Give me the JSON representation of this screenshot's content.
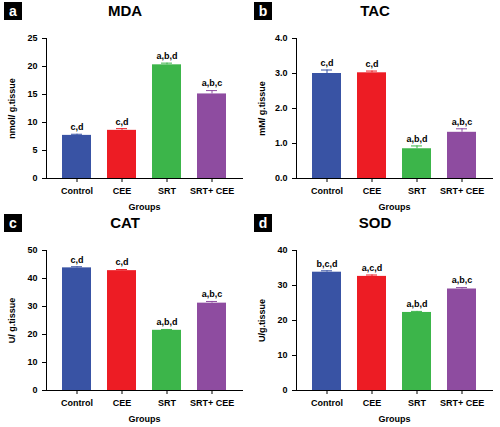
{
  "chart_data": [
    {
      "type": "bar",
      "panel_label": "a",
      "title": "MDA",
      "categories": [
        "Control",
        "CEE",
        "SRT",
        "SRT+ CEE"
      ],
      "values": [
        7.7,
        8.6,
        20.3,
        15.1
      ],
      "error": [
        0.2,
        0.3,
        0.3,
        0.6
      ],
      "annotations": [
        "c,d",
        "c,d",
        "a,b,d",
        "a,b,c"
      ],
      "colors": [
        "#3953a4",
        "#ed1c24",
        "#3cb54a",
        "#8e4ca0"
      ],
      "x_label": "Groups",
      "y_label": "nmol/ g.tissue",
      "ylim": [
        0,
        25
      ],
      "yticks": [
        0,
        5,
        10,
        15,
        20,
        25
      ]
    },
    {
      "type": "bar",
      "panel_label": "b",
      "title": "TAC",
      "categories": [
        "Control",
        "CEE",
        "SRT",
        "SRT+ CEE"
      ],
      "values": [
        3.0,
        3.02,
        0.85,
        1.32
      ],
      "error": [
        0.1,
        0.05,
        0.08,
        0.1
      ],
      "annotations": [
        "c,d",
        "c,d",
        "a,b,d",
        "a,b,c"
      ],
      "colors": [
        "#3953a4",
        "#ed1c24",
        "#3cb54a",
        "#8e4ca0"
      ],
      "x_label": "Groups",
      "y_label": "mM/ g.tissue",
      "ylim": [
        0,
        4
      ],
      "yticks": [
        0,
        1,
        2,
        3,
        4
      ]
    },
    {
      "type": "bar",
      "panel_label": "c",
      "title": "CAT",
      "categories": [
        "Control",
        "CEE",
        "SRT",
        "SRT+ CEE"
      ],
      "values": [
        43.8,
        42.8,
        21.5,
        31.2
      ],
      "error": [
        0.4,
        0.4,
        0.3,
        0.6
      ],
      "annotations": [
        "c,d",
        "c,d",
        "a,b,d",
        "a,b,c"
      ],
      "colors": [
        "#3953a4",
        "#ed1c24",
        "#3cb54a",
        "#8e4ca0"
      ],
      "x_label": "Groups",
      "y_label": "U/ g.tissue",
      "ylim": [
        0,
        50
      ],
      "yticks": [
        0,
        10,
        20,
        30,
        40,
        50
      ]
    },
    {
      "type": "bar",
      "panel_label": "d",
      "title": "SOD",
      "categories": [
        "Control",
        "CEE",
        "SRT",
        "SRT+ CEE"
      ],
      "values": [
        33.8,
        32.6,
        22.3,
        29.0
      ],
      "error": [
        0.4,
        0.4,
        0.3,
        0.4
      ],
      "annotations": [
        "b,c,d",
        "a,c,d",
        "a,b,d",
        "a,b,c"
      ],
      "colors": [
        "#3953a4",
        "#ed1c24",
        "#3cb54a",
        "#8e4ca0"
      ],
      "x_label": "Groups",
      "y_label": "U/g.tissue",
      "ylim": [
        0,
        40
      ],
      "yticks": [
        0,
        10,
        20,
        30,
        40
      ]
    }
  ]
}
